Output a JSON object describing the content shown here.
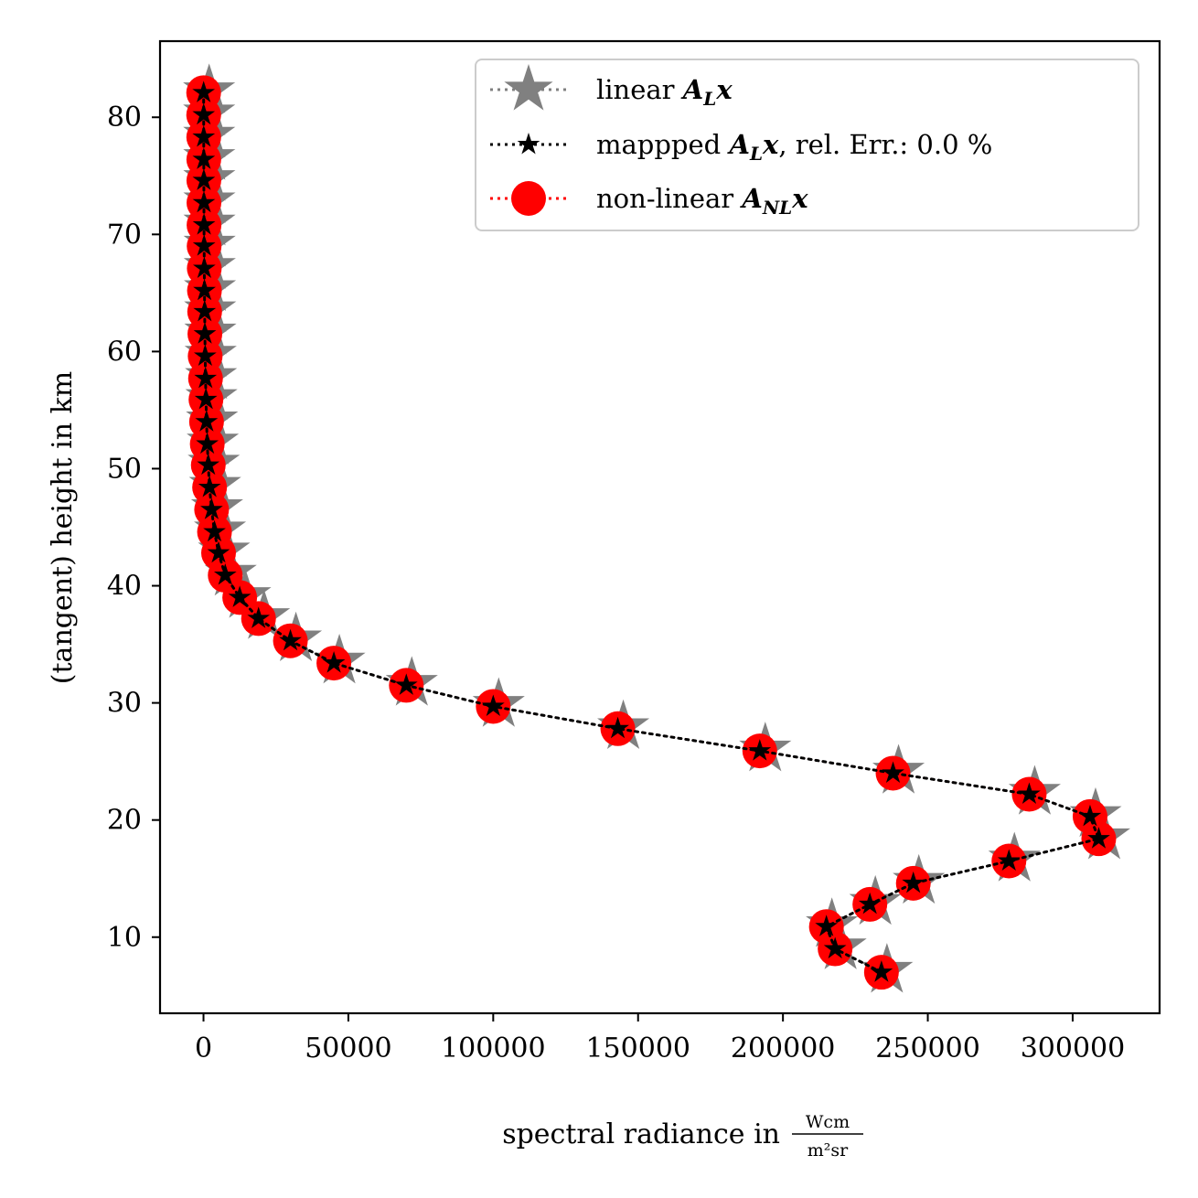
{
  "chart_data": {
    "type": "line",
    "xlabel": "spectral radiance in",
    "xlabel_unit_numerator": "Wcm",
    "xlabel_unit_denominator": "m²sr",
    "ylabel": "(tangent) height in km",
    "xlim": [
      -15000,
      330000
    ],
    "ylim": [
      3.5,
      86.5
    ],
    "x_ticks": [
      0,
      50000,
      100000,
      150000,
      200000,
      250000,
      300000
    ],
    "x_tick_labels": [
      "0",
      "50000",
      "100000",
      "150000",
      "200000",
      "250000",
      "300000"
    ],
    "y_ticks": [
      10,
      20,
      30,
      40,
      50,
      60,
      70,
      80
    ],
    "y_tick_labels": [
      "10",
      "20",
      "30",
      "40",
      "50",
      "60",
      "70",
      "80"
    ],
    "grid": false,
    "legend_position": "top-right",
    "heights": [
      7.0,
      9.0,
      10.9,
      12.8,
      14.6,
      16.5,
      18.4,
      20.3,
      22.2,
      24.0,
      25.9,
      27.8,
      29.7,
      31.5,
      33.4,
      35.3,
      37.2,
      39.0,
      40.9,
      42.8,
      44.6,
      46.5,
      48.4,
      50.3,
      52.1,
      54.0,
      55.9,
      57.7,
      59.6,
      61.5,
      63.4,
      65.2,
      67.1,
      69.0,
      70.8,
      72.7,
      74.6,
      76.4,
      78.3,
      80.2,
      82.1
    ],
    "series": [
      {
        "name_prefix": "linear ",
        "name_math": "A",
        "name_sub": "L",
        "name_math2": "x",
        "name_suffix": "",
        "color": "#808080",
        "marker": "star-large",
        "linestyle": "dotted",
        "values": [
          234000,
          218000,
          215000,
          230000,
          245000,
          278000,
          309000,
          306000,
          285000,
          238000,
          192000,
          143000,
          100000,
          70000,
          45000,
          30000,
          19000,
          12500,
          7500,
          5200,
          3800,
          2800,
          2100,
          1650,
          1300,
          1050,
          850,
          700,
          580,
          480,
          400,
          330,
          270,
          220,
          180,
          150,
          120,
          100,
          80,
          65,
          50
        ]
      },
      {
        "name_prefix": "mappped ",
        "name_math": "A",
        "name_sub": "L",
        "name_math2": "x",
        "name_suffix": ", rel. Err.: 0.0 %",
        "color": "#000000",
        "marker": "star-small",
        "linestyle": "dotted",
        "values": [
          234000,
          218000,
          215000,
          230000,
          245000,
          278000,
          309000,
          306000,
          285000,
          238000,
          192000,
          143000,
          100000,
          70000,
          45000,
          30000,
          19000,
          12500,
          7500,
          5200,
          3800,
          2800,
          2100,
          1650,
          1300,
          1050,
          850,
          700,
          580,
          480,
          400,
          330,
          270,
          220,
          180,
          150,
          120,
          100,
          80,
          65,
          50
        ]
      },
      {
        "name_prefix": "non-linear ",
        "name_math": "A",
        "name_sub": "NL",
        "name_math2": "x",
        "name_suffix": "",
        "color": "#ff0000",
        "marker": "circle",
        "linestyle": "dotted",
        "values": [
          234000,
          218000,
          215000,
          230000,
          245000,
          278000,
          309000,
          306000,
          285000,
          238000,
          192000,
          143000,
          100000,
          70000,
          45000,
          30000,
          19000,
          12500,
          7500,
          5200,
          3800,
          2800,
          2100,
          1650,
          1300,
          1050,
          850,
          700,
          580,
          480,
          400,
          330,
          270,
          220,
          180,
          150,
          120,
          100,
          80,
          65,
          50
        ]
      }
    ]
  }
}
